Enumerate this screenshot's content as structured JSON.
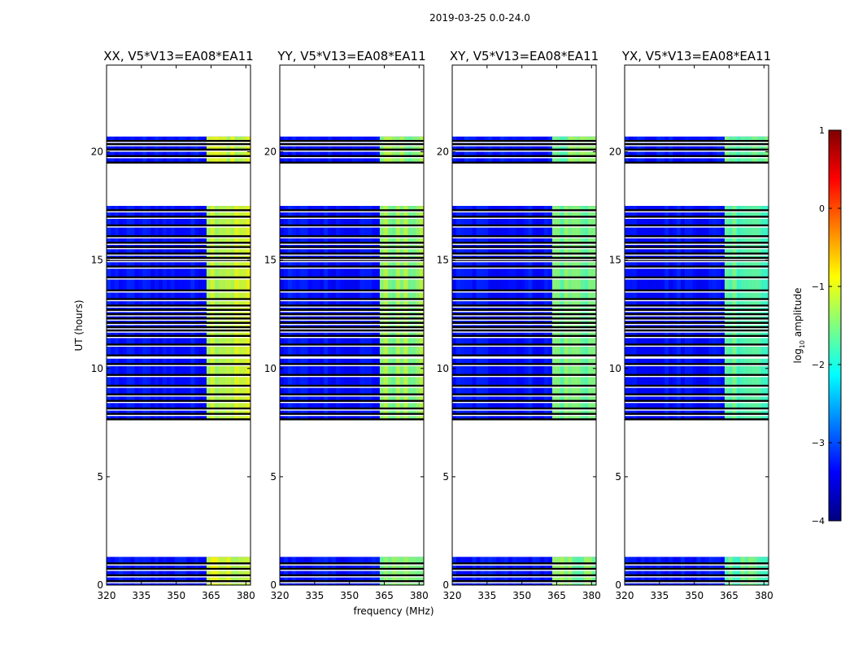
{
  "chart_data": {
    "type": "heatmap",
    "suptitle": "2019-03-25 0.0-24.0",
    "xlabel": "frequency (MHz)",
    "ylabel": "UT (hours)",
    "xlim": [
      320,
      382
    ],
    "ylim": [
      0,
      24
    ],
    "xticks": [
      320,
      335,
      350,
      365,
      380
    ],
    "yticks": [
      0,
      5,
      10,
      15,
      20
    ],
    "colorbar": {
      "label": "log",
      "label_sub": "10",
      "label_suffix": " amplitude",
      "range": [
        -4,
        1
      ],
      "ticks": [
        1,
        0,
        -1,
        -2,
        -3,
        -4
      ],
      "tick_labels": [
        "1",
        "0",
        "−1",
        "−2",
        "−3",
        "−4"
      ],
      "colormap": "jet"
    },
    "panels": [
      {
        "title": "XX, V5*V13=EA08*EA11"
      },
      {
        "title": "YY, V5*V13=EA08*EA11"
      },
      {
        "title": "XY, V5*V13=EA08*EA11"
      },
      {
        "title": "YX, V5*V13=EA08*EA11"
      }
    ],
    "data_segments_ut": [
      [
        0.0,
        1.3
      ],
      [
        7.6,
        17.5
      ],
      [
        19.4,
        20.7
      ]
    ],
    "flagged_lines_ut": [
      0.18,
      0.45,
      0.75,
      1.0,
      7.65,
      7.9,
      8.15,
      8.5,
      8.8,
      9.2,
      9.7,
      10.2,
      10.6,
      11.1,
      11.5,
      11.75,
      11.9,
      12.1,
      12.3,
      12.5,
      12.7,
      12.9,
      13.2,
      13.6,
      14.2,
      14.7,
      15.0,
      15.1,
      15.3,
      15.6,
      15.8,
      16.1,
      16.6,
      17.0,
      17.3,
      19.5,
      19.8,
      20.1,
      20.35,
      20.5
    ],
    "flagged_bands_ut": [
      [
        10.45,
        10.55
      ]
    ],
    "bright_band_mhz": [
      363,
      381
    ],
    "bright_band_level": {
      "XX": -1.1,
      "YY": -1.4,
      "XY": -1.5,
      "YX": -1.6
    }
  }
}
